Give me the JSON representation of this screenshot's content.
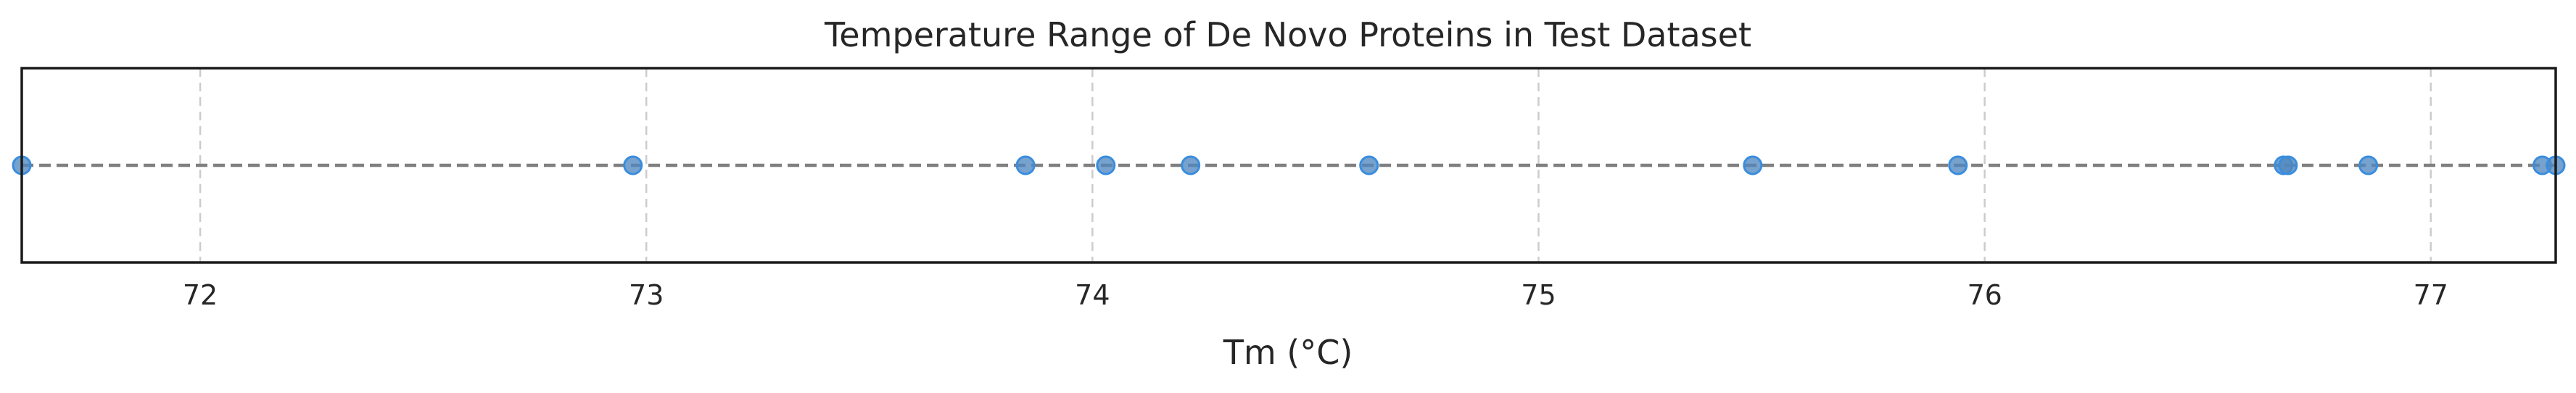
{
  "chart_data": {
    "type": "scatter",
    "title": "Temperature Range of De Novo Proteins in Test Dataset",
    "xlabel": "Tm (°C)",
    "ylabel": "",
    "xlim": [
      71.6,
      77.28
    ],
    "ylim": [
      -1,
      1
    ],
    "xticks": [
      72,
      73,
      74,
      75,
      76,
      77
    ],
    "grid": "x-dashed",
    "legend": "none",
    "reference_line_y": 0,
    "x": [
      71.6,
      72.97,
      73.85,
      74.03,
      74.22,
      74.62,
      75.48,
      75.94,
      76.67,
      76.68,
      76.86,
      77.25,
      77.28
    ],
    "y": [
      0,
      0,
      0,
      0,
      0,
      0,
      0,
      0,
      0,
      0,
      0,
      0,
      0
    ],
    "colors": {
      "point_fill": "#4f88bf",
      "point_edge": "#3a8dde",
      "reference_line": "#808080",
      "frame": "#1a1a1a",
      "grid": "#cccccc"
    }
  }
}
